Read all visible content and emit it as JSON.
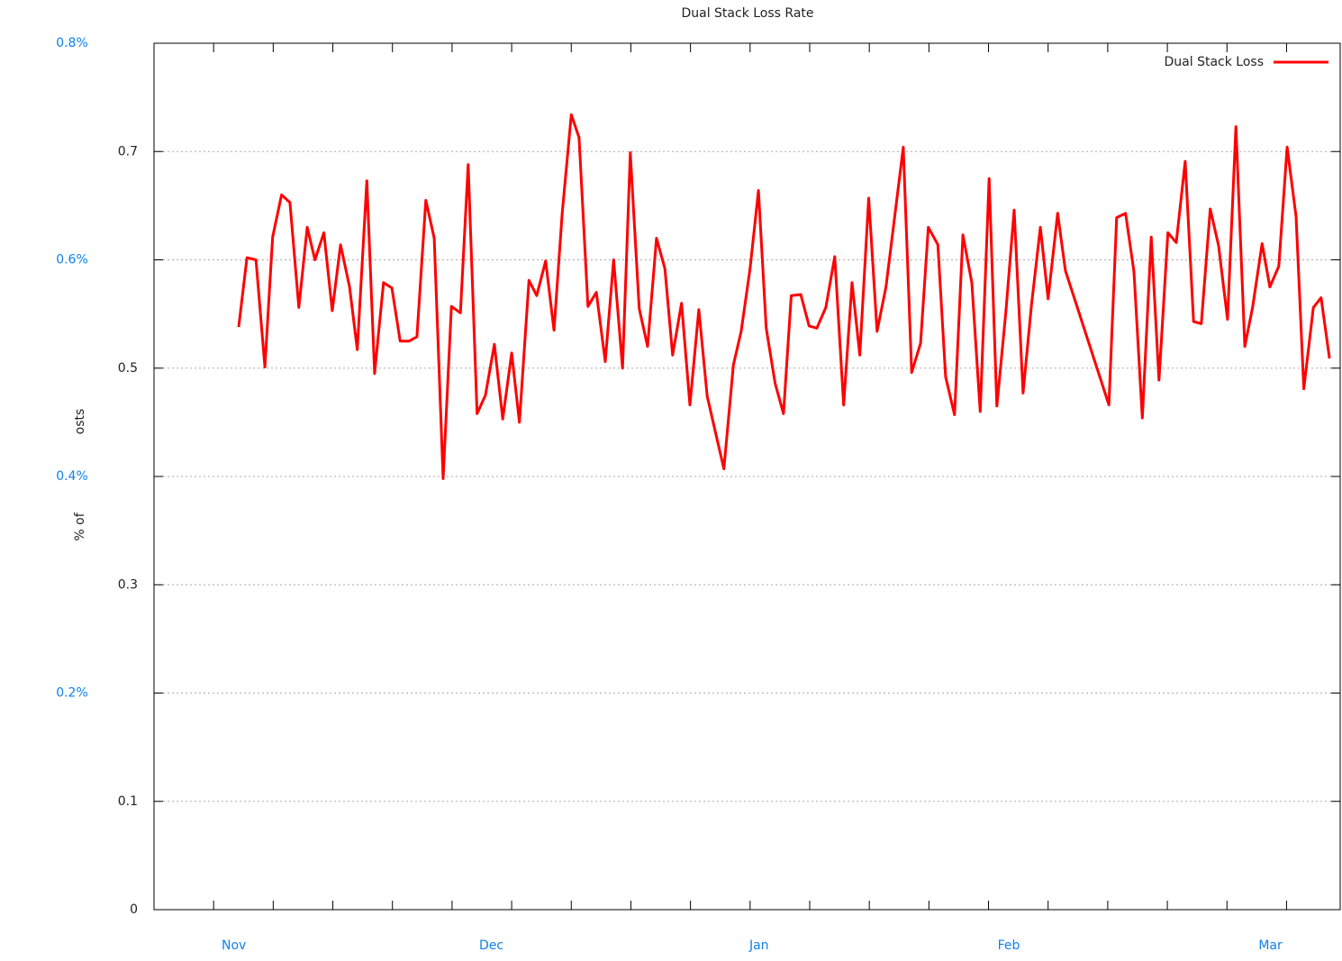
{
  "chart_data": {
    "type": "line",
    "title": "Dual Stack Loss Rate",
    "y_label_parts": [
      "% of",
      "osts"
    ],
    "x": [
      14.2,
      15.6,
      17.1,
      18.6,
      19.9,
      21.4,
      22.8,
      24.3,
      25.7,
      27.0,
      28.5,
      29.9,
      31.3,
      32.8,
      34.1,
      35.7,
      37.0,
      38.5,
      39.9,
      41.3,
      42.8,
      44.1,
      45.6,
      47.0,
      48.5,
      49.9,
      51.4,
      52.7,
      54.2,
      55.6,
      57.1,
      58.5,
      60.0,
      61.3,
      62.9,
      64.2,
      65.7,
      67.1,
      68.5,
      70.0,
      71.3,
      72.8,
      74.2,
      75.7,
      77.1,
      78.6,
      79.9,
      81.4,
      82.8,
      84.3,
      85.7,
      87.0,
      88.5,
      89.9,
      91.4,
      92.8,
      95.6,
      97.2,
      98.5,
      100.0,
      101.4,
      102.7,
      104.2,
      105.6,
      106.9,
      108.5,
      109.9,
      111.2,
      112.7,
      114.2,
      115.7,
      117.1,
      118.4,
      119.9,
      121.3,
      122.8,
      125.7,
      127.1,
      128.6,
      129.9,
      131.5,
      132.8,
      134.3,
      135.7,
      137.2,
      138.6,
      140.1,
      141.4,
      142.9,
      144.3,
      145.8,
      147.2,
      148.7,
      150.0,
      151.6,
      152.9,
      160.2,
      161.5,
      163.0,
      164.4,
      165.8,
      167.3,
      168.6,
      170.1,
      171.5,
      173.0,
      174.4,
      175.7,
      177.2,
      178.6,
      180.1,
      181.5,
      183.0,
      184.3,
      185.9,
      187.2,
      188.7,
      190.1,
      191.6,
      192.9,
      194.5,
      195.8,
      197.2
    ],
    "series": [
      {
        "name": "Dual Stack Loss",
        "color": "#ff0000",
        "values": [
          0.538,
          0.602,
          0.6,
          0.501,
          0.621,
          0.66,
          0.653,
          0.556,
          0.63,
          0.6,
          0.625,
          0.553,
          0.614,
          0.575,
          0.517,
          0.673,
          0.495,
          0.579,
          0.574,
          0.525,
          0.525,
          0.529,
          0.655,
          0.62,
          0.398,
          0.557,
          0.551,
          0.688,
          0.458,
          0.475,
          0.522,
          0.453,
          0.514,
          0.45,
          0.581,
          0.567,
          0.599,
          0.535,
          0.644,
          0.734,
          0.713,
          0.557,
          0.57,
          0.506,
          0.6,
          0.5,
          0.699,
          0.555,
          0.52,
          0.62,
          0.592,
          0.512,
          0.56,
          0.466,
          0.554,
          0.474,
          0.407,
          0.503,
          0.534,
          0.592,
          0.664,
          0.537,
          0.486,
          0.458,
          0.567,
          0.568,
          0.539,
          0.537,
          0.556,
          0.603,
          0.466,
          0.579,
          0.512,
          0.657,
          0.534,
          0.575,
          0.704,
          0.496,
          0.523,
          0.63,
          0.614,
          0.492,
          0.457,
          0.623,
          0.579,
          0.46,
          0.675,
          0.465,
          0.551,
          0.646,
          0.477,
          0.558,
          0.63,
          0.564,
          0.643,
          0.59,
          0.466,
          0.639,
          0.643,
          0.589,
          0.454,
          0.621,
          0.489,
          0.625,
          0.616,
          0.691,
          0.543,
          0.541,
          0.647,
          0.613,
          0.545,
          0.723,
          0.52,
          0.556,
          0.615,
          0.575,
          0.594,
          0.704,
          0.64,
          0.481,
          0.556,
          0.565,
          0.509
        ]
      }
    ],
    "xlim": [
      0,
      199
    ],
    "xticks": [
      10,
      20,
      30,
      40,
      50,
      60,
      70,
      80,
      90,
      100,
      110,
      120,
      130,
      140,
      150,
      160,
      170,
      180,
      190
    ],
    "ylim": [
      0,
      0.8
    ],
    "yticks": [
      0,
      0.1,
      0.3,
      0.5,
      0.7
    ],
    "grid": true,
    "legend": "top-right",
    "overlay_yticks": [
      {
        "value": 0.8,
        "label": "0.8%"
      },
      {
        "value": 0.6,
        "label": "0.6%"
      },
      {
        "value": 0.4,
        "label": "0.4%"
      },
      {
        "value": 0.2,
        "label": "0.2%"
      }
    ],
    "overlay_xlabels": [
      {
        "value": 13.4,
        "label": "Nov"
      },
      {
        "value": 56.6,
        "label": "Dec"
      },
      {
        "value": 101.5,
        "label": "Jan"
      },
      {
        "value": 143.4,
        "label": "Feb"
      },
      {
        "value": 187.3,
        "label": "Mar"
      }
    ],
    "overlay_color": "#0f80ea"
  }
}
